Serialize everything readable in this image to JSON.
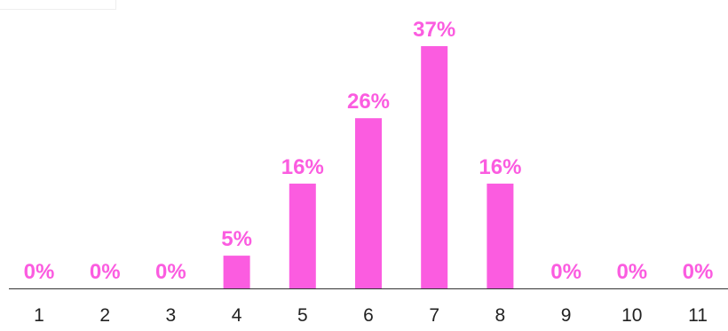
{
  "chart_data": {
    "type": "bar",
    "categories": [
      "1",
      "2",
      "3",
      "4",
      "5",
      "6",
      "7",
      "8",
      "9",
      "10",
      "11"
    ],
    "values": [
      0,
      0,
      0,
      5,
      16,
      26,
      37,
      16,
      0,
      0,
      0
    ],
    "data_labels": [
      "0%",
      "0%",
      "0%",
      "5%",
      "16%",
      "26%",
      "37%",
      "16%",
      "0%",
      "0%",
      "0%"
    ],
    "title": "",
    "xlabel": "",
    "ylabel": "",
    "ylim": [
      0,
      37
    ],
    "grid": false,
    "bar_color": "#fb5ce0",
    "label_color": "#fb5ce0"
  }
}
